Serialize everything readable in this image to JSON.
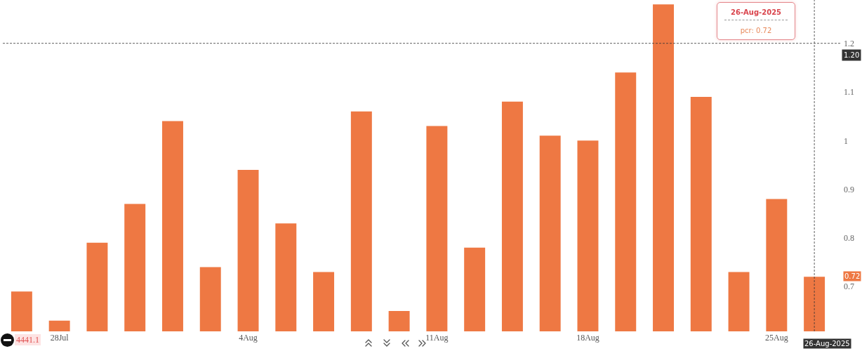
{
  "chart_data": {
    "type": "bar",
    "categories": [
      null,
      "28Jul",
      null,
      null,
      null,
      null,
      "4Aug",
      null,
      null,
      null,
      null,
      "11Aug",
      null,
      null,
      null,
      "18Aug",
      null,
      null,
      null,
      null,
      "25Aug",
      "26-Aug-2025"
    ],
    "values": [
      0.69,
      0.63,
      0.79,
      0.87,
      1.04,
      0.74,
      0.94,
      0.83,
      0.73,
      1.06,
      0.65,
      1.03,
      0.78,
      1.08,
      1.01,
      1.0,
      1.14,
      1.28,
      1.09,
      0.73,
      0.88,
      0.72
    ],
    "color": "#ee7843",
    "ylim": [
      0.608,
      1.289
    ],
    "yticks": [
      0.7,
      0.8,
      0.9,
      1,
      1.1,
      1.2
    ],
    "ref_lines": [
      {
        "axis": "y",
        "value": 1.2,
        "label": "1.20",
        "line_style": "dashed",
        "color": "#333333"
      },
      {
        "axis": "x",
        "value": "26-Aug-2025",
        "line_style": "dashed",
        "color": "#333333"
      }
    ],
    "annotations": [
      "26-Aug-2025\npcr: 0.72",
      "4441.1",
      {
        "text": "0.72",
        "y": 0.72
      }
    ]
  }
}
